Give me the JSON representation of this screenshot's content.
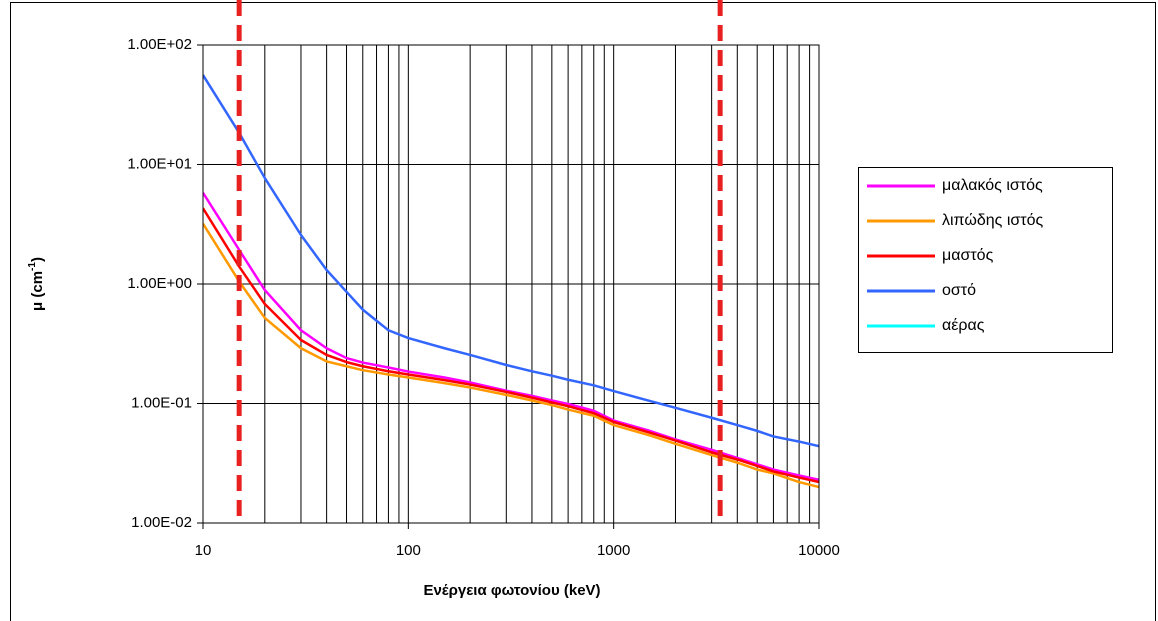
{
  "chart_data": {
    "type": "line",
    "xlabel": "Ενέργεια φωτονίου (keV)",
    "ylabel": "μ (cm",
    "ylabel_sup": "-1",
    "ylabel_end": ")",
    "xscale": "log",
    "yscale": "log",
    "xlim": [
      10,
      10000
    ],
    "ylim": [
      0.01,
      100
    ],
    "xticks": [
      10,
      100,
      1000,
      10000
    ],
    "xminorticks": [
      20,
      30,
      40,
      50,
      60,
      70,
      80,
      90,
      200,
      300,
      400,
      500,
      600,
      700,
      800,
      900,
      2000,
      3000,
      4000,
      5000,
      6000,
      7000,
      8000,
      9000
    ],
    "yticks": [
      {
        "value": 0.01,
        "label": "1.00E-02"
      },
      {
        "value": 0.1,
        "label": "1.00E-01"
      },
      {
        "value": 1,
        "label": "1.00E+00"
      },
      {
        "value": 10,
        "label": "1.00E+01"
      },
      {
        "value": 100,
        "label": "1.00E+02"
      }
    ],
    "grid": true,
    "legend": "right",
    "vlines": [
      {
        "x": 15,
        "color": "#e82020"
      },
      {
        "x": 3300,
        "color": "#e82020"
      }
    ],
    "x": [
      10,
      15,
      20,
      30,
      40,
      50,
      60,
      80,
      100,
      150,
      200,
      300,
      400,
      500,
      600,
      800,
      1000,
      1500,
      2000,
      3000,
      4000,
      5000,
      6000,
      8000,
      10000
    ],
    "series": [
      {
        "name": "μαλακός ιστός",
        "color": "#ff00ff",
        "values": [
          5.8,
          1.93,
          0.89,
          0.41,
          0.29,
          0.24,
          0.22,
          0.2,
          0.185,
          0.165,
          0.15,
          0.128,
          0.116,
          0.106,
          0.099,
          0.087,
          0.072,
          0.059,
          0.05,
          0.041,
          0.035,
          0.031,
          0.028,
          0.025,
          0.023
        ]
      },
      {
        "name": "λιπώδης ιστός",
        "color": "#ff9900",
        "values": [
          3.2,
          1.05,
          0.52,
          0.29,
          0.225,
          0.205,
          0.19,
          0.175,
          0.165,
          0.148,
          0.136,
          0.118,
          0.106,
          0.097,
          0.089,
          0.079,
          0.066,
          0.054,
          0.046,
          0.037,
          0.032,
          0.028,
          0.026,
          0.022,
          0.02
        ]
      },
      {
        "name": "μαστός",
        "color": "#ff0000",
        "values": [
          4.3,
          1.4,
          0.68,
          0.34,
          0.255,
          0.222,
          0.205,
          0.186,
          0.175,
          0.157,
          0.144,
          0.125,
          0.112,
          0.102,
          0.095,
          0.083,
          0.07,
          0.057,
          0.049,
          0.039,
          0.034,
          0.03,
          0.027,
          0.024,
          0.022
        ]
      },
      {
        "name": "οστό",
        "color": "#3366ff",
        "values": [
          56,
          18.4,
          7.7,
          2.57,
          1.31,
          0.86,
          0.61,
          0.41,
          0.353,
          0.29,
          0.255,
          0.21,
          0.186,
          0.171,
          0.158,
          0.142,
          0.127,
          0.105,
          0.092,
          0.076,
          0.066,
          0.059,
          0.053,
          0.048,
          0.044
        ]
      },
      {
        "name": "αέρας",
        "color": "#00ffff",
        "values": [
          null,
          null,
          null,
          null,
          null,
          null,
          null,
          null,
          null,
          null,
          null,
          null,
          null,
          null,
          null,
          null,
          null,
          null,
          null,
          null,
          null,
          null,
          null,
          null,
          null
        ]
      }
    ]
  }
}
